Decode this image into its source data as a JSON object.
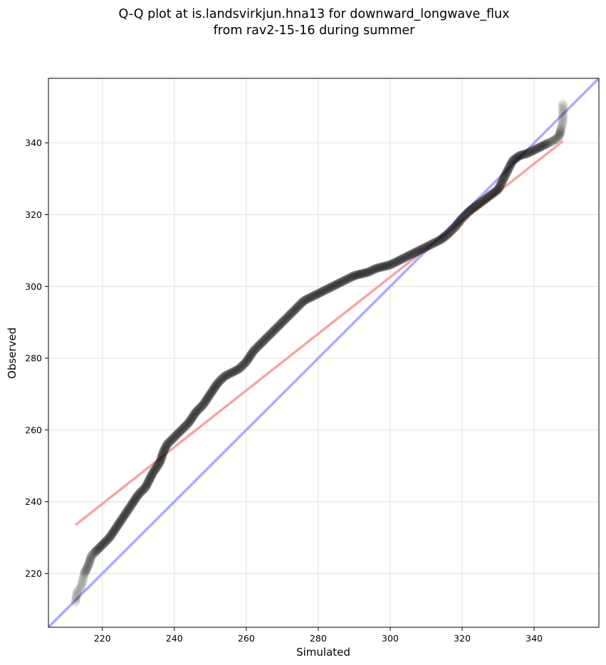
{
  "chart_data": {
    "type": "scatter",
    "title_line1": "Q-Q plot at is.landsvirkjun.hna13 for downward_longwave_flux",
    "title_line2": "from rav2-15-16 during summer",
    "xlabel": "Simulated",
    "ylabel": "Observed",
    "xlim": [
      205,
      358
    ],
    "ylim": [
      205,
      358
    ],
    "xticks": [
      220,
      240,
      260,
      280,
      300,
      320,
      340
    ],
    "yticks": [
      220,
      240,
      260,
      280,
      300,
      320,
      340
    ],
    "grid": true,
    "colors": {
      "points": "#000000",
      "identity_line": "#aaaaff",
      "fit_line": "#f4a6a6"
    },
    "quantile_curve": [
      [
        212.5,
        212
      ],
      [
        213.0,
        215
      ],
      [
        214.0,
        216
      ],
      [
        215.0,
        220
      ],
      [
        216.0,
        222
      ],
      [
        217.0,
        225
      ],
      [
        218.0,
        226
      ],
      [
        219.0,
        227
      ],
      [
        220.0,
        228
      ],
      [
        222.0,
        230
      ],
      [
        224.0,
        233
      ],
      [
        226.0,
        236
      ],
      [
        228.0,
        239
      ],
      [
        230.0,
        242
      ],
      [
        232.0,
        244
      ],
      [
        234.0,
        248
      ],
      [
        236.0,
        251
      ],
      [
        237.0,
        254
      ],
      [
        238.0,
        256
      ],
      [
        240.0,
        258
      ],
      [
        242.0,
        260
      ],
      [
        244.0,
        262
      ],
      [
        246.0,
        265
      ],
      [
        248.0,
        267
      ],
      [
        250.0,
        270
      ],
      [
        252.0,
        273
      ],
      [
        254.0,
        275
      ],
      [
        256.0,
        276
      ],
      [
        258.0,
        277
      ],
      [
        260.0,
        279
      ],
      [
        262.0,
        282
      ],
      [
        264.0,
        284
      ],
      [
        266.0,
        286
      ],
      [
        268.0,
        288
      ],
      [
        270.0,
        290
      ],
      [
        272.0,
        292
      ],
      [
        274.0,
        294
      ],
      [
        276.0,
        296
      ],
      [
        278.0,
        297
      ],
      [
        280.0,
        298
      ],
      [
        282.0,
        299
      ],
      [
        284.0,
        300
      ],
      [
        286.0,
        301
      ],
      [
        288.0,
        302
      ],
      [
        290.0,
        303
      ],
      [
        292.0,
        303.5
      ],
      [
        294.0,
        304
      ],
      [
        296.0,
        305
      ],
      [
        298.0,
        305.5
      ],
      [
        300.0,
        306
      ],
      [
        302.0,
        307
      ],
      [
        304.0,
        308
      ],
      [
        306.0,
        309
      ],
      [
        308.0,
        310
      ],
      [
        310.0,
        311
      ],
      [
        312.0,
        312
      ],
      [
        314.0,
        313
      ],
      [
        316.0,
        314.5
      ],
      [
        318.0,
        316.5
      ],
      [
        320.0,
        319
      ],
      [
        322.0,
        321
      ],
      [
        324.0,
        322.5
      ],
      [
        326.0,
        324
      ],
      [
        328.0,
        325.5
      ],
      [
        330.0,
        327
      ],
      [
        331.0,
        329
      ],
      [
        332.0,
        331
      ],
      [
        333.0,
        333
      ],
      [
        334.0,
        335
      ],
      [
        336.0,
        336.5
      ],
      [
        338.0,
        337
      ],
      [
        340.0,
        338
      ],
      [
        342.0,
        339
      ],
      [
        344.0,
        340
      ],
      [
        346.0,
        341
      ],
      [
        347.0,
        342
      ],
      [
        347.5,
        344
      ],
      [
        348.0,
        346
      ],
      [
        348.0,
        351
      ]
    ],
    "identity_line": {
      "slope": 1,
      "intercept": 0
    },
    "fit_line": {
      "x_start": 212.5,
      "y_start": 233.5,
      "x_end": 348,
      "y_end": 340.5
    }
  }
}
